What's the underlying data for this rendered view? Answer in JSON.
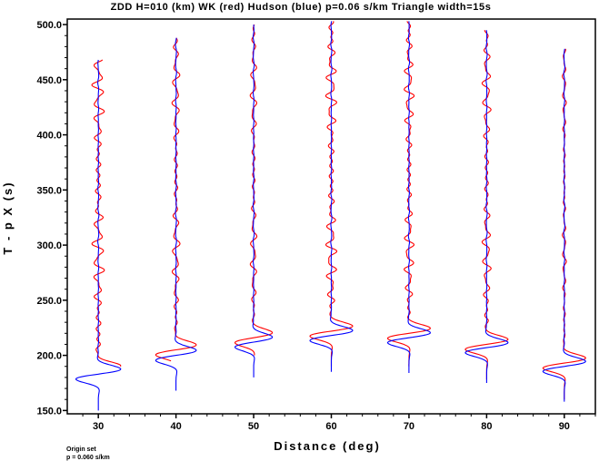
{
  "chart_data": {
    "type": "line",
    "title": "ZDD H=010 (km) WK (red) Hudson (blue) p=0.06 s/km Triangle width=15s",
    "xlabel": "Distance (deg)",
    "ylabel": "T - p X (s)",
    "xlim": [
      26,
      94
    ],
    "ylim": [
      147,
      505
    ],
    "x_ticks": [
      30,
      40,
      50,
      60,
      70,
      80,
      90
    ],
    "x_tick_labels": [
      "30",
      "40",
      "50",
      "60",
      "70",
      "80",
      "90"
    ],
    "y_ticks": [
      150,
      200,
      250,
      300,
      350,
      400,
      450,
      500
    ],
    "y_tick_labels": [
      "150.0",
      "200.0",
      "250.0",
      "300.0",
      "350.0",
      "400.0",
      "450.0",
      "500.0"
    ],
    "grid": false,
    "legend": "none",
    "colors": {
      "WK": "#ff0000",
      "Hudson": "#0000ff"
    },
    "series": [
      {
        "name": "WK",
        "traces": [
          {
            "distance": 30,
            "t_start": 190,
            "t_end": 468,
            "arrival": 186,
            "arr_amp": 4.2,
            "coda_amp": 1.1,
            "period": 16
          },
          {
            "distance": 40,
            "t_start": 195,
            "t_end": 488,
            "arrival": 205,
            "arr_amp": 3.8,
            "coda_amp": 0.7,
            "period": 17
          },
          {
            "distance": 50,
            "t_start": 200,
            "t_end": 500,
            "arrival": 216,
            "arr_amp": 3.5,
            "coda_amp": 0.6,
            "period": 17
          },
          {
            "distance": 60,
            "t_start": 190,
            "t_end": 503,
            "arrival": 222,
            "arr_amp": 4.0,
            "coda_amp": 1.0,
            "period": 15
          },
          {
            "distance": 70,
            "t_start": 190,
            "t_end": 503,
            "arrival": 220,
            "arr_amp": 4.0,
            "coda_amp": 0.9,
            "period": 15
          },
          {
            "distance": 80,
            "t_start": 178,
            "t_end": 495,
            "arrival": 210,
            "arr_amp": 4.0,
            "coda_amp": 0.8,
            "period": 16
          },
          {
            "distance": 90,
            "t_start": 160,
            "t_end": 478,
            "arrival": 193,
            "arr_amp": 4.0,
            "coda_amp": 0.35,
            "period": 16
          }
        ]
      },
      {
        "name": "Hudson",
        "traces": [
          {
            "distance": 30,
            "t_start": 150,
            "t_end": 468,
            "arrival": 183,
            "arr_amp": 4.2,
            "coda_amp": 0.1,
            "period": 16
          },
          {
            "distance": 40,
            "t_start": 168,
            "t_end": 488,
            "arrival": 200,
            "arr_amp": 3.8,
            "coda_amp": 0.1,
            "period": 17
          },
          {
            "distance": 50,
            "t_start": 180,
            "t_end": 500,
            "arrival": 212,
            "arr_amp": 3.5,
            "coda_amp": 0.1,
            "period": 17
          },
          {
            "distance": 60,
            "t_start": 185,
            "t_end": 503,
            "arrival": 218,
            "arr_amp": 4.0,
            "coda_amp": 0.1,
            "period": 15
          },
          {
            "distance": 70,
            "t_start": 184,
            "t_end": 503,
            "arrival": 216,
            "arr_amp": 4.0,
            "coda_amp": 0.1,
            "period": 15
          },
          {
            "distance": 80,
            "t_start": 175,
            "t_end": 495,
            "arrival": 207,
            "arr_amp": 4.0,
            "coda_amp": 0.1,
            "period": 16
          },
          {
            "distance": 90,
            "t_start": 158,
            "t_end": 478,
            "arrival": 190,
            "arr_amp": 4.0,
            "coda_amp": 0.1,
            "period": 16
          }
        ]
      }
    ]
  },
  "notes": {
    "line1": "Origin set",
    "line2": "p = 0.060 s/km"
  }
}
